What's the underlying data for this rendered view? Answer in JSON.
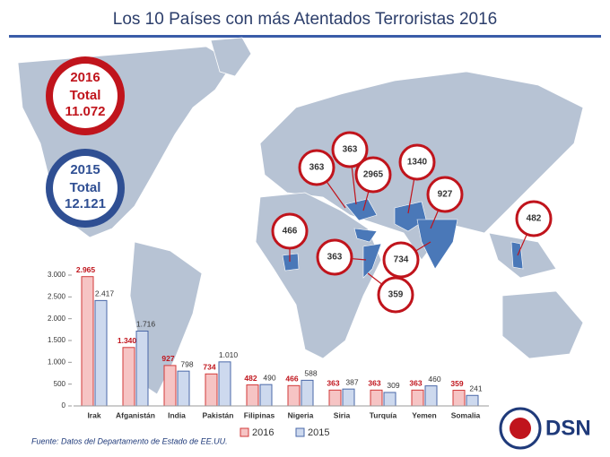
{
  "chart_data": {
    "type": "bar",
    "title": "Los 10 Países con más Atentados Terroristas 2016",
    "categories": [
      "Irak",
      "Afganistán",
      "India",
      "Pakistán",
      "Filipinas",
      "Nigeria",
      "Siria",
      "Turquía",
      "Yemen",
      "Somalia"
    ],
    "series": [
      {
        "name": "2016",
        "color": "#f6c4c4",
        "stroke": "#d23a3a",
        "label_color": "#c0141c",
        "values": [
          2965,
          1340,
          927,
          734,
          482,
          466,
          363,
          363,
          363,
          359
        ],
        "value_labels": [
          "2.965",
          "1.340",
          "927",
          "734",
          "482",
          "466",
          "363",
          "363",
          "363",
          "359"
        ]
      },
      {
        "name": "2015",
        "color": "#cdd9ee",
        "stroke": "#4a68a8",
        "label_color": "#333333",
        "values": [
          2417,
          1716,
          798,
          1010,
          490,
          588,
          387,
          309,
          460,
          241
        ],
        "value_labels": [
          "2.417",
          "1.716",
          "798",
          "1.010",
          "490",
          "588",
          "387",
          "309",
          "460",
          "241"
        ]
      }
    ],
    "ylim": [
      0,
      3000
    ],
    "yticks": [
      0,
      500,
      {
        "value": 1000,
        "label": "1.000"
      },
      {
        "value": 1500,
        "label": "1.500"
      },
      {
        "value": 2000,
        "label": "2.000"
      },
      {
        "value": 2500,
        "label": "2.500"
      },
      {
        "value": 3000,
        "label": "3.000"
      }
    ],
    "grid": false
  },
  "summary": [
    {
      "year": "2016",
      "label": "Total",
      "value": "11.072",
      "color": "#c0141c"
    },
    {
      "year": "2015",
      "label": "Total",
      "value": "12.121",
      "color": "#2f4f93"
    }
  ],
  "map_callouts": [
    363,
    363,
    2965,
    1340,
    927,
    466,
    363,
    734,
    359,
    482
  ],
  "source": "Fuente:  Datos del Departamento de Estado de EE.UU.",
  "logo": "DSN"
}
